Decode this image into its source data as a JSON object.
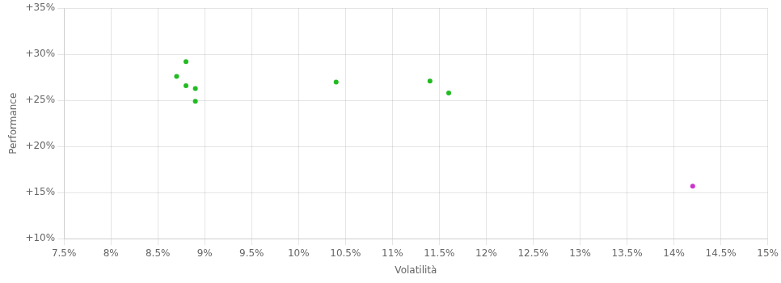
{
  "chart_data": {
    "type": "scatter",
    "xlabel": "Volatilità",
    "ylabel": "Performance",
    "xlim": [
      0.075,
      0.15
    ],
    "ylim": [
      0.1,
      0.35
    ],
    "xticks": [
      {
        "value": 0.075,
        "label": "7.5%"
      },
      {
        "value": 0.08,
        "label": "8%"
      },
      {
        "value": 0.085,
        "label": "8.5%"
      },
      {
        "value": 0.09,
        "label": "9%"
      },
      {
        "value": 0.095,
        "label": "9.5%"
      },
      {
        "value": 0.1,
        "label": "10%"
      },
      {
        "value": 0.105,
        "label": "10.5%"
      },
      {
        "value": 0.11,
        "label": "11%"
      },
      {
        "value": 0.115,
        "label": "11.5%"
      },
      {
        "value": 0.12,
        "label": "12%"
      },
      {
        "value": 0.125,
        "label": "12.5%"
      },
      {
        "value": 0.13,
        "label": "13%"
      },
      {
        "value": 0.135,
        "label": "13.5%"
      },
      {
        "value": 0.14,
        "label": "14%"
      },
      {
        "value": 0.145,
        "label": "14.5%"
      },
      {
        "value": 0.15,
        "label": "15%"
      }
    ],
    "yticks": [
      {
        "value": 0.1,
        "label": "+10%"
      },
      {
        "value": 0.15,
        "label": "+15%"
      },
      {
        "value": 0.2,
        "label": "+20%"
      },
      {
        "value": 0.25,
        "label": "+25%"
      },
      {
        "value": 0.3,
        "label": "+30%"
      },
      {
        "value": 0.35,
        "label": "+35%"
      }
    ],
    "grid": true,
    "series": [
      {
        "color": "#22bb22",
        "x": [
          0.088,
          0.087,
          0.088,
          0.089,
          0.089,
          0.104,
          0.114,
          0.116
        ],
        "values": [
          0.292,
          0.276,
          0.266,
          0.263,
          0.249,
          0.27,
          0.271,
          0.258
        ]
      },
      {
        "color": "#cc33cc",
        "x": [
          0.142
        ],
        "values": [
          0.157
        ]
      }
    ]
  }
}
